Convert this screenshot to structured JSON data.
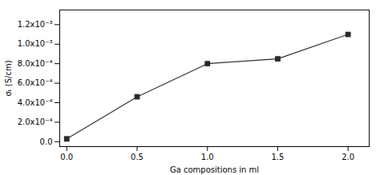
{
  "chart_data": {
    "type": "line",
    "xlabel": "Ga compositions in ml",
    "ylabel": "σₜ (S/cm)",
    "x": [
      0.0,
      0.5,
      1.0,
      1.5,
      2.0
    ],
    "values": [
      3e-05,
      0.00046,
      0.0008,
      0.00085,
      0.0011
    ],
    "color": "#2b2b2b",
    "marker": "square",
    "xlim": [
      -0.05,
      2.15
    ],
    "xticks": [
      {
        "value": 0.0,
        "label": "0.0"
      },
      0.5,
      {
        "value": 1.0,
        "label": "1.0"
      },
      1.5,
      {
        "value": 2.0,
        "label": "2.0"
      }
    ],
    "ylim": [
      -5e-05,
      0.00135
    ],
    "yticks": [
      {
        "value": 0.0,
        "label": "0.0"
      },
      {
        "value": 0.0002,
        "label": "2.0x10⁻⁴"
      },
      {
        "value": 0.0004,
        "label": "4.0x10⁻⁴"
      },
      {
        "value": 0.0006,
        "label": "6.0x10⁻⁴"
      },
      {
        "value": 0.0008,
        "label": "8.0x10⁻⁴"
      },
      {
        "value": 0.001,
        "label": "1.0x10⁻³"
      },
      {
        "value": 0.0012,
        "label": "1.2x10⁻³"
      }
    ],
    "grid": false
  }
}
